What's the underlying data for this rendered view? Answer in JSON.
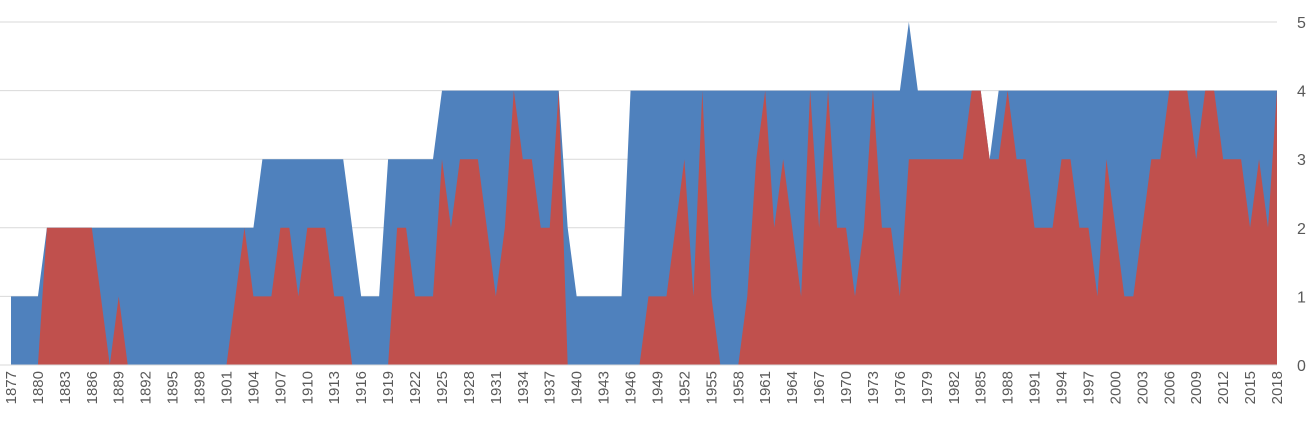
{
  "chart_data": {
    "type": "area",
    "title": "",
    "xlabel": "",
    "ylabel": "",
    "x_start": 1877,
    "x_end": 2018,
    "x_tick_labels": [
      "1877",
      "1880",
      "1883",
      "1886",
      "1889",
      "1892",
      "1895",
      "1898",
      "1901",
      "1904",
      "1907",
      "1910",
      "1913",
      "1916",
      "1919",
      "1922",
      "1925",
      "1928",
      "1931",
      "1934",
      "1937",
      "1940",
      "1943",
      "1946",
      "1949",
      "1952",
      "1955",
      "1958",
      "1961",
      "1964",
      "1967",
      "1970",
      "1973",
      "1976",
      "1979",
      "1982",
      "1985",
      "1988",
      "1991",
      "1994",
      "1997",
      "2000",
      "2003",
      "2006",
      "2009",
      "2012",
      "2015",
      "2018"
    ],
    "y_tick_labels": [
      "0",
      "1",
      "2",
      "3",
      "4",
      "5"
    ],
    "ylim": [
      0,
      5
    ],
    "y_axis_position": "right",
    "grid": true,
    "legend": "none",
    "series": [
      {
        "color": "#4f81bd",
        "values": [
          1,
          1,
          1,
          1,
          2,
          2,
          2,
          2,
          2,
          2,
          2,
          2,
          2,
          2,
          2,
          2,
          2,
          2,
          2,
          2,
          2,
          2,
          2,
          2,
          2,
          2,
          2,
          2,
          3,
          3,
          3,
          3,
          3,
          3,
          3,
          3,
          3,
          3,
          2,
          1,
          1,
          1,
          3,
          3,
          3,
          3,
          3,
          3,
          4,
          4,
          4,
          4,
          4,
          4,
          4,
          4,
          4,
          4,
          4,
          4,
          4,
          4,
          2,
          1,
          1,
          1,
          1,
          1,
          1,
          4,
          4,
          4,
          4,
          4,
          4,
          4,
          4,
          4,
          4,
          4,
          4,
          4,
          4,
          4,
          4,
          4,
          4,
          4,
          4,
          4,
          4,
          4,
          4,
          4,
          4,
          4,
          4,
          4,
          4,
          4,
          5,
          4,
          4,
          4,
          4,
          4,
          4,
          4,
          4,
          3,
          4,
          4,
          4,
          4,
          4,
          4,
          4,
          4,
          4,
          4,
          4,
          4,
          4,
          4,
          4,
          4,
          4,
          4,
          4,
          4,
          4,
          4,
          4,
          4,
          4,
          4,
          4,
          4,
          4,
          4,
          4,
          4
        ]
      },
      {
        "color": "#c0504d",
        "values": [
          0,
          0,
          0,
          0,
          2,
          2,
          2,
          2,
          2,
          2,
          1,
          0,
          1,
          0,
          0,
          0,
          0,
          0,
          0,
          0,
          0,
          0,
          0,
          0,
          0,
          1,
          2,
          1,
          1,
          1,
          2,
          2,
          1,
          2,
          2,
          2,
          1,
          1,
          0,
          0,
          0,
          0,
          0,
          2,
          2,
          1,
          1,
          1,
          3,
          2,
          3,
          3,
          3,
          2,
          1,
          2,
          4,
          3,
          3,
          2,
          2,
          4,
          0,
          0,
          0,
          0,
          0,
          0,
          0,
          0,
          0,
          1,
          1,
          1,
          2,
          3,
          1,
          4,
          1,
          0,
          0,
          0,
          1,
          3,
          4,
          2,
          3,
          2,
          1,
          4,
          2,
          4,
          2,
          2,
          1,
          2,
          4,
          2,
          2,
          1,
          3,
          3,
          3,
          3,
          3,
          3,
          3,
          4,
          4,
          3,
          3,
          4,
          3,
          3,
          2,
          2,
          2,
          3,
          3,
          2,
          2,
          1,
          3,
          2,
          1,
          1,
          2,
          3,
          3,
          4,
          4,
          4,
          3,
          4,
          4,
          3,
          3,
          3,
          2,
          3,
          2,
          4
        ]
      }
    ]
  }
}
